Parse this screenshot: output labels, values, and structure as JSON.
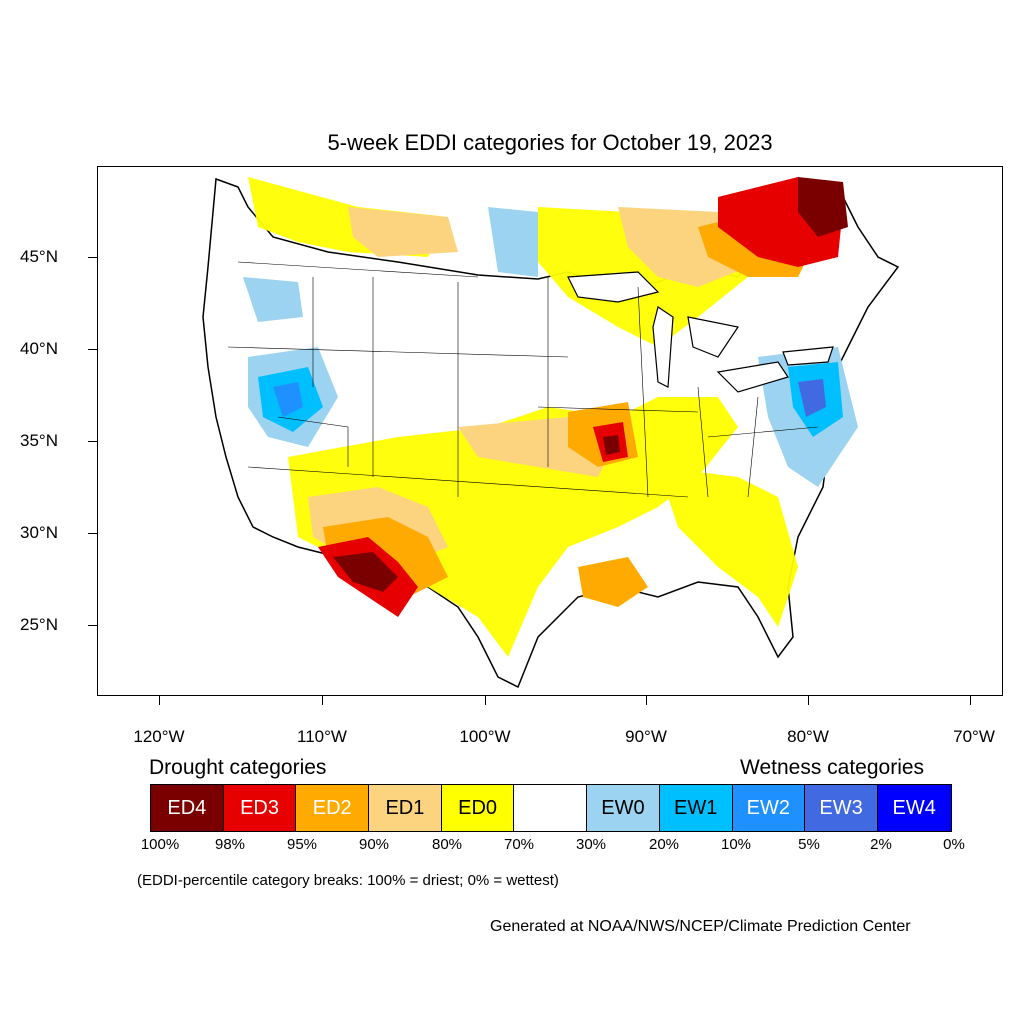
{
  "title": "5-week EDDI categories for October 19, 2023",
  "axes": {
    "lat_ticks": [
      "45°N",
      "40°N",
      "35°N",
      "30°N",
      "25°N"
    ],
    "lon_ticks": [
      "120°W",
      "110°W",
      "100°W",
      "90°W",
      "80°W",
      "70°W"
    ]
  },
  "legend": {
    "drought_heading": "Drought categories",
    "wetness_heading": "Wetness categories",
    "categories": [
      {
        "label": "ED4",
        "color": "#7a0000",
        "text_color": "#ffffff"
      },
      {
        "label": "ED3",
        "color": "#e60000",
        "text_color": "#ffffff"
      },
      {
        "label": "ED2",
        "color": "#ffaa00",
        "text_color": "#ffffff"
      },
      {
        "label": "ED1",
        "color": "#fcd37f",
        "text_color": "#000000"
      },
      {
        "label": "ED0",
        "color": "#ffff00",
        "text_color": "#000000"
      },
      {
        "label": "",
        "color": "#ffffff",
        "text_color": "#000000"
      },
      {
        "label": "EW0",
        "color": "#9bd3f0",
        "text_color": "#000000"
      },
      {
        "label": "EW1",
        "color": "#00bfff",
        "text_color": "#000000"
      },
      {
        "label": "EW2",
        "color": "#1e90ff",
        "text_color": "#ffffff"
      },
      {
        "label": "EW3",
        "color": "#4169e1",
        "text_color": "#ffffff"
      },
      {
        "label": "EW4",
        "color": "#0000ff",
        "text_color": "#ffffff"
      }
    ],
    "breaks": [
      "100%",
      "98%",
      "95%",
      "90%",
      "80%",
      "70%",
      "30%",
      "20%",
      "10%",
      "5%",
      "2%",
      "0%"
    ]
  },
  "note": "(EDDI-percentile category breaks: 100% = driest; 0% = wettest)",
  "credit": "Generated at NOAA/NWS/NCEP/Climate Prediction Center"
}
